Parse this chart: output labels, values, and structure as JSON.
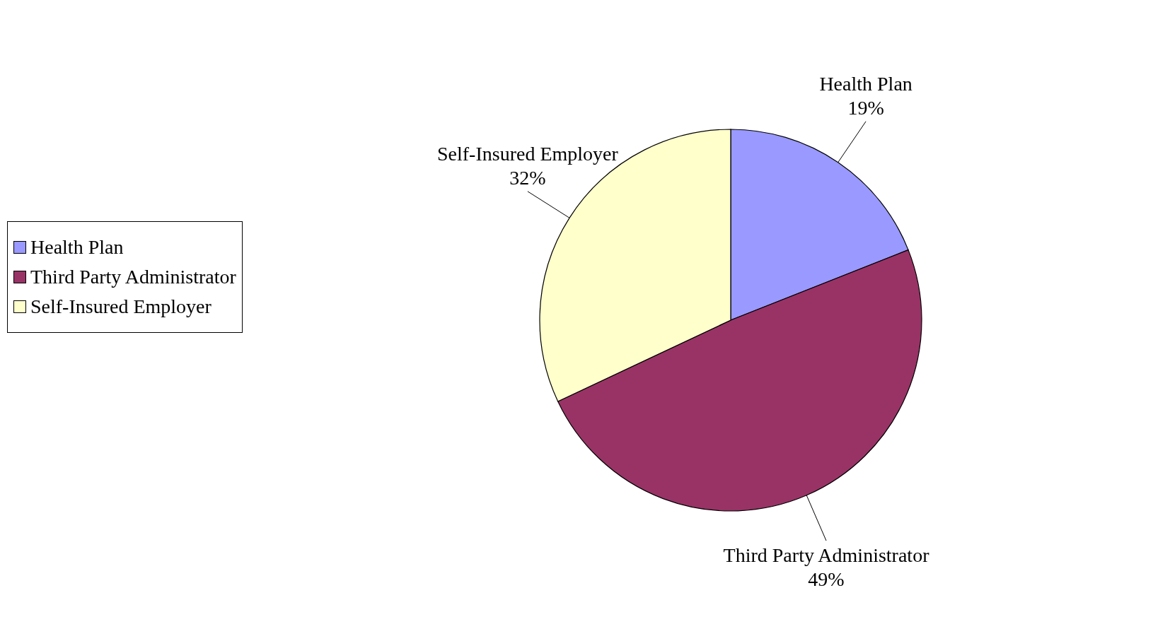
{
  "chart_data": {
    "type": "pie",
    "categories": [
      "Health Plan",
      "Third Party Administrator",
      "Self-Insured Employer"
    ],
    "values": [
      19,
      49,
      32
    ],
    "value_labels": [
      "19%",
      "49%",
      "32%"
    ],
    "colors": [
      "#9999ff",
      "#993366",
      "#ffffcc"
    ],
    "legend": "left"
  }
}
